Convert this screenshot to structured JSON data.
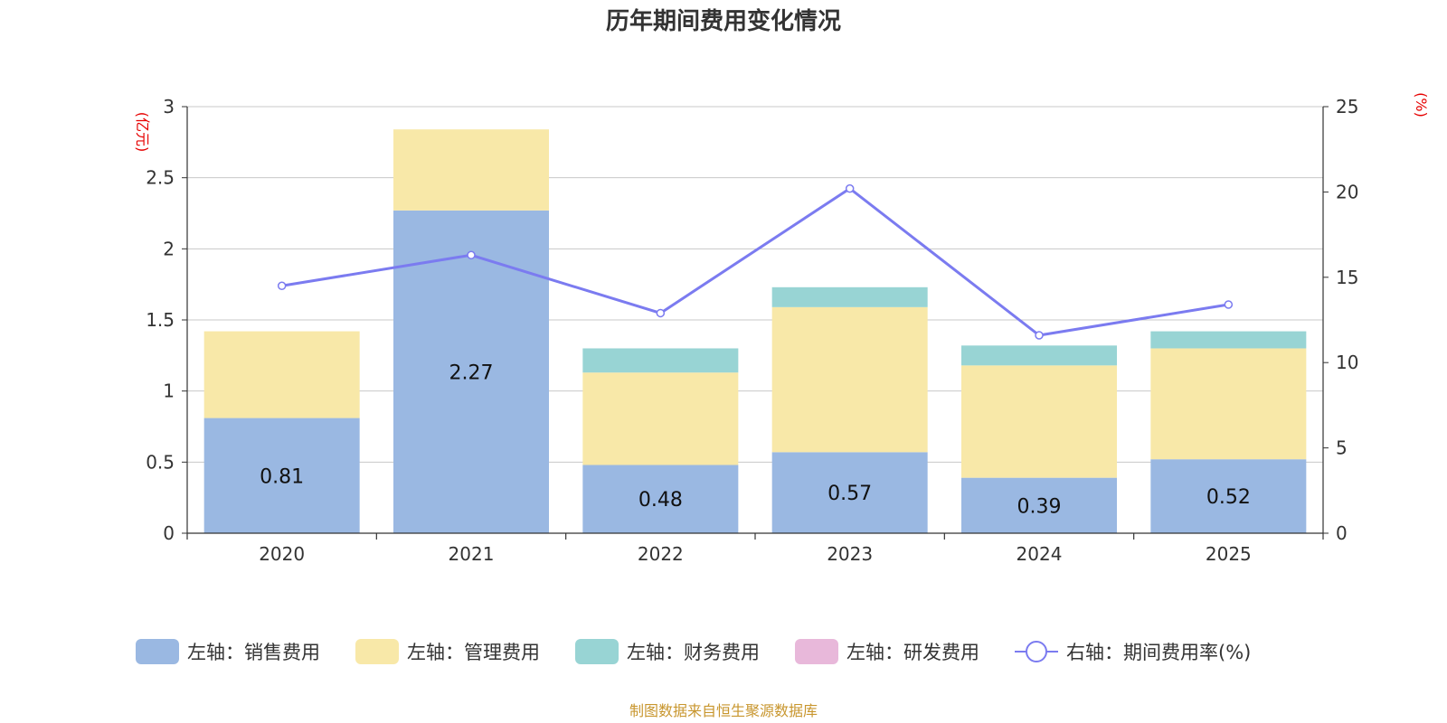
{
  "chart_data": {
    "type": "bar",
    "title": "历年期间费用变化情况",
    "left_unit": "(亿元)",
    "right_unit": "(%)",
    "categories": [
      "2020",
      "2021",
      "2022",
      "2023",
      "2024",
      "2025"
    ],
    "ylim_left": [
      0,
      3
    ],
    "yticks_left": [
      "0",
      "0.5",
      "1",
      "1.5",
      "2",
      "2.5",
      "3"
    ],
    "ylim_right": [
      0,
      25
    ],
    "yticks_right": [
      "0",
      "5",
      "10",
      "15",
      "20",
      "25"
    ],
    "series": [
      {
        "name": "左轴：销售费用",
        "axis": "left",
        "color": "#9ab8e2",
        "values": [
          0.81,
          2.27,
          0.48,
          0.57,
          0.39,
          0.52
        ],
        "labels": [
          "0.81",
          "2.27",
          "0.48",
          "0.57",
          "0.39",
          "0.52"
        ]
      },
      {
        "name": "左轴：管理费用",
        "axis": "left",
        "color": "#f8e8a8",
        "values": [
          0.61,
          0.57,
          0.65,
          1.02,
          0.79,
          0.78
        ]
      },
      {
        "name": "左轴：财务费用",
        "axis": "left",
        "color": "#98d4d4",
        "values": [
          0,
          0,
          0.17,
          0.14,
          0.14,
          0.12
        ]
      },
      {
        "name": "左轴：研发费用",
        "axis": "left",
        "color": "#e8b8da",
        "values": [
          0,
          0,
          0,
          0,
          0,
          0
        ]
      },
      {
        "name": "右轴：期间费用率(%)",
        "axis": "right",
        "type": "line",
        "color": "#7b7bf0",
        "values": [
          14.5,
          16.3,
          12.9,
          20.2,
          11.6,
          13.4
        ]
      }
    ],
    "grid": true,
    "legend": "bottom",
    "source": "制图数据来自恒生聚源数据库"
  }
}
